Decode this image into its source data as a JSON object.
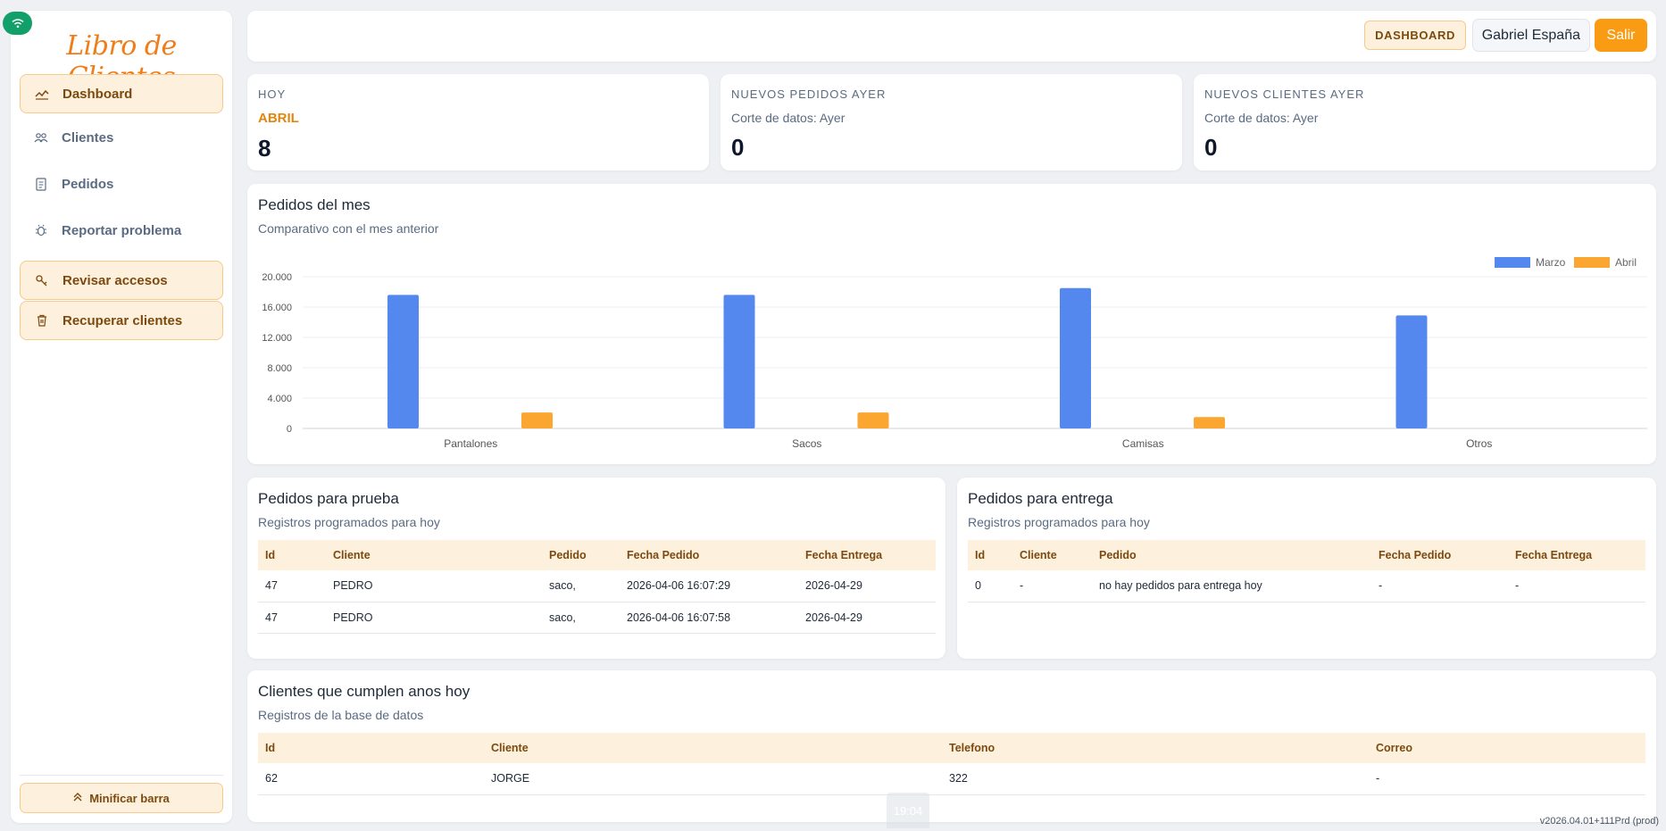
{
  "sidebar": {
    "logo": "Libro de Clientes",
    "items": [
      {
        "label": "Dashboard",
        "icon": "chart-line-icon"
      },
      {
        "label": "Clientes",
        "icon": "users-icon"
      },
      {
        "label": "Pedidos",
        "icon": "clipboard-icon"
      },
      {
        "label": "Reportar problema",
        "icon": "bug-icon"
      },
      {
        "label": "Revisar accesos",
        "icon": "key-icon"
      },
      {
        "label": "Recuperar clientes",
        "icon": "trash-icon"
      }
    ],
    "minify_label": "Minificar barra"
  },
  "topbar": {
    "badge": "DASHBOARD",
    "user": "Gabriel España",
    "logout": "Salir"
  },
  "stats": [
    {
      "title": "HOY",
      "sub": "ABRIL",
      "value": "8"
    },
    {
      "title": "NUEVOS PEDIDOS AYER",
      "sub": "Corte de datos: Ayer",
      "value": "0"
    },
    {
      "title": "NUEVOS CLIENTES AYER",
      "sub": "Corte de datos: Ayer",
      "value": "0"
    }
  ],
  "orders_chart": {
    "title": "Pedidos del mes",
    "subtitle": "Comparativo con el mes anterior"
  },
  "chart_data": {
    "type": "bar",
    "categories": [
      "Pantalones",
      "Sacos",
      "Camisas",
      "Otros"
    ],
    "series": [
      {
        "name": "Marzo",
        "color": "#5588ee",
        "values": [
          17600,
          17600,
          18500,
          14900
        ]
      },
      {
        "name": "Abril",
        "color": "#fba631",
        "values": [
          2100,
          2100,
          1500,
          0
        ]
      }
    ],
    "ylim": [
      0,
      20000
    ],
    "yticks": [
      "0",
      "4.000",
      "8.000",
      "12.000",
      "16.000",
      "20.000"
    ],
    "legend": "top-right",
    "grid": true
  },
  "test_orders": {
    "title": "Pedidos para prueba",
    "subtitle": "Registros programados para hoy",
    "headers": [
      "Id",
      "Cliente",
      "Pedido",
      "Fecha Pedido",
      "Fecha Entrega"
    ],
    "rows": [
      [
        "47",
        "PEDRO",
        "saco,",
        "2026-04-06 16:07:29",
        "2026-04-29"
      ],
      [
        "47",
        "PEDRO",
        "saco,",
        "2026-04-06 16:07:58",
        "2026-04-29"
      ]
    ]
  },
  "delivery_orders": {
    "title": "Pedidos para entrega",
    "subtitle": "Registros programados para hoy",
    "headers": [
      "Id",
      "Cliente",
      "Pedido",
      "Fecha Pedido",
      "Fecha Entrega"
    ],
    "rows": [
      [
        "0",
        "-",
        "no hay pedidos para entrega hoy",
        "-",
        "-"
      ]
    ]
  },
  "birthdays": {
    "title": "Clientes que cumplen anos hoy",
    "subtitle": "Registros de la base de datos",
    "headers": [
      "Id",
      "Cliente",
      "Telefono",
      "Correo"
    ],
    "rows": [
      [
        "62",
        "JORGE",
        "322",
        "-"
      ]
    ]
  },
  "footer": {
    "version": "v2026.04.01+111Prd (prod)",
    "clock": "19:04"
  },
  "colors": {
    "accent": "#f99b13",
    "accent_soft": "#fdf0dc",
    "status": "#12a06a"
  }
}
